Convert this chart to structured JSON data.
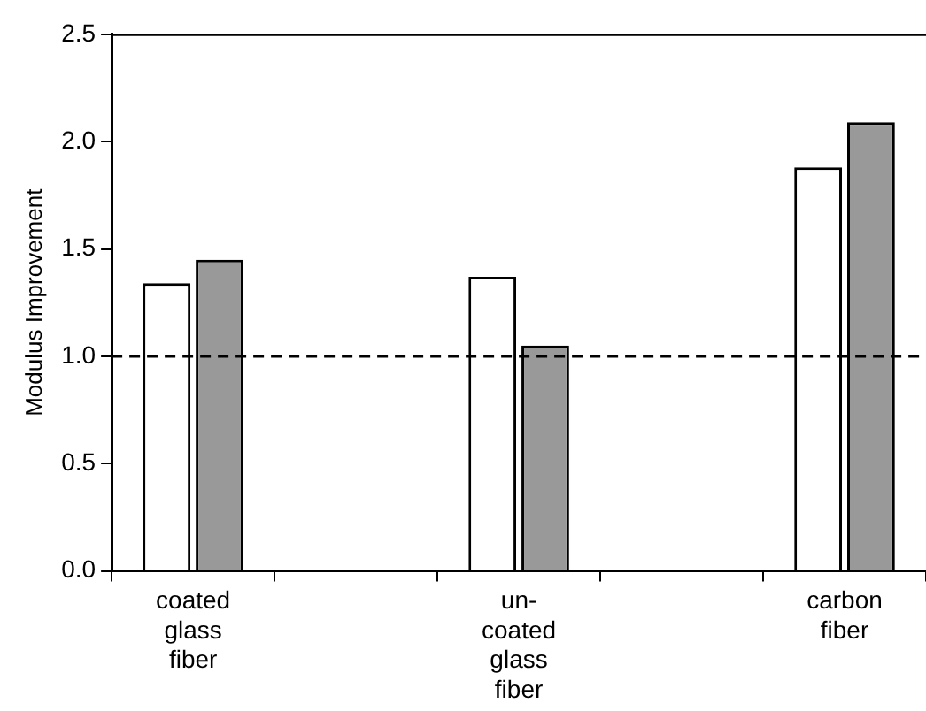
{
  "chart_data": {
    "type": "bar",
    "ylabel": "Modulus Improvement",
    "categories": [
      "coated glass fiber",
      null,
      "un-coated glass fiber",
      null,
      "carbon fiber"
    ],
    "series": [
      {
        "color": "#ffffff",
        "values": [
          1.34,
          null,
          1.37,
          null,
          1.88
        ]
      },
      {
        "color": "#999999",
        "values": [
          1.45,
          null,
          1.05,
          null,
          2.09
        ]
      }
    ],
    "ylim": [
      0,
      2.5
    ],
    "yticks": [
      {
        "value": 0,
        "label": "0.0"
      },
      {
        "value": 0.5,
        "label": "0.5"
      },
      {
        "value": 1,
        "label": "1.0"
      },
      {
        "value": 1.5,
        "label": "1.5"
      },
      {
        "value": 2,
        "label": "2.0"
      },
      {
        "value": 2.5,
        "label": "2.5"
      }
    ],
    "grid": false,
    "legend": false,
    "ref_lines": [
      {
        "axis": "y",
        "value": 1,
        "line_style": "dashed",
        "color": "#000000"
      }
    ]
  }
}
